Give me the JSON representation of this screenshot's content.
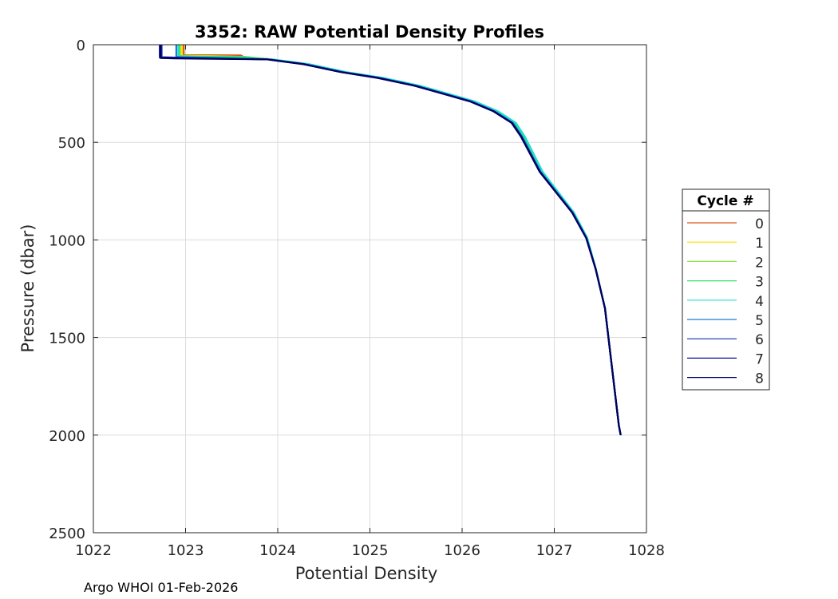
{
  "chart_data": {
    "type": "line",
    "title": "3352: RAW Potential Density Profiles",
    "xlabel": "Potential Density",
    "ylabel": "Pressure (dbar)",
    "xlim": [
      1022,
      1028
    ],
    "ylim": [
      0,
      2500
    ],
    "y_reversed": true,
    "grid": true,
    "x_ticks": [
      "1022",
      "1023",
      "1024",
      "1025",
      "1026",
      "1027",
      "1028"
    ],
    "y_ticks": [
      "0",
      "500",
      "1000",
      "1500",
      "2000",
      "2500"
    ],
    "legend_title": "Cycle #",
    "legend_position": "right",
    "base_profile": {
      "density": [
        1022.72,
        1022.75,
        1022.9,
        1023.6,
        1023.9,
        1024.3,
        1024.7,
        1025.1,
        1025.5,
        1025.8,
        1026.1,
        1026.35,
        1026.55,
        1026.65,
        1026.75,
        1026.85,
        1027.0,
        1027.2,
        1027.35,
        1027.45,
        1027.55,
        1027.6,
        1027.65,
        1027.7,
        1027.72
      ],
      "pressure": [
        0,
        35,
        55,
        62,
        75,
        100,
        140,
        170,
        210,
        250,
        290,
        340,
        400,
        470,
        560,
        650,
        740,
        860,
        990,
        1150,
        1350,
        1550,
        1750,
        1950,
        2000
      ]
    },
    "series": [
      {
        "name": "0",
        "color": "#d95319",
        "density_offset": 0.03,
        "surface_density": 1022.98,
        "top_step_density": 1023.6,
        "top_step_pressure": 55
      },
      {
        "name": "1",
        "color": "#ffe100",
        "density_offset": 0.02,
        "surface_density": 1022.96,
        "top_step_density": 1023.3,
        "top_step_pressure": 58
      },
      {
        "name": "2",
        "color": "#8ee23a",
        "density_offset": 0.04,
        "surface_density": 1022.94,
        "top_step_density": 1023.2,
        "top_step_pressure": 60
      },
      {
        "name": "3",
        "color": "#2fe06c",
        "density_offset": 0.02,
        "surface_density": 1022.93,
        "top_step_density": 1023.1,
        "top_step_pressure": 60
      },
      {
        "name": "4",
        "color": "#1fe0d0",
        "density_offset": 0.05,
        "surface_density": 1022.92,
        "top_step_density": 1023.0,
        "top_step_pressure": 62
      },
      {
        "name": "5",
        "color": "#1f77d0",
        "density_offset": 0.0,
        "surface_density": 1022.9,
        "top_step_density": 1022.95,
        "top_step_pressure": 64
      },
      {
        "name": "6",
        "color": "#1030b0",
        "density_offset": -0.01,
        "surface_density": 1022.74,
        "top_step_density": 1022.9,
        "top_step_pressure": 66
      },
      {
        "name": "7",
        "color": "#0a10a0",
        "density_offset": -0.02,
        "surface_density": 1022.72,
        "top_step_density": 1022.88,
        "top_step_pressure": 68
      },
      {
        "name": "8",
        "color": "#000060",
        "density_offset": -0.02,
        "surface_density": 1022.73,
        "top_step_density": 1022.88,
        "top_step_pressure": 70
      }
    ]
  },
  "footer": {
    "text": "Argo WHOI 01-Feb-2026"
  }
}
